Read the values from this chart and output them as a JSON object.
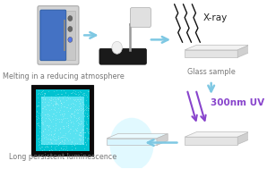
{
  "bg_color": "#ffffff",
  "furnace_label": "Melting in a reducing atmosphere",
  "glass_label": "Glass sample",
  "lpl_label": "Long persistent luminescence",
  "xray_text": "X-ray",
  "uv_text": "300nm UV",
  "uv_color": "#8844cc",
  "arrow_color": "#7ec8e3",
  "label_color": "#777777",
  "label_fontsize": 5.8,
  "uv_fontsize": 7.5,
  "xray_fontsize": 7.5
}
